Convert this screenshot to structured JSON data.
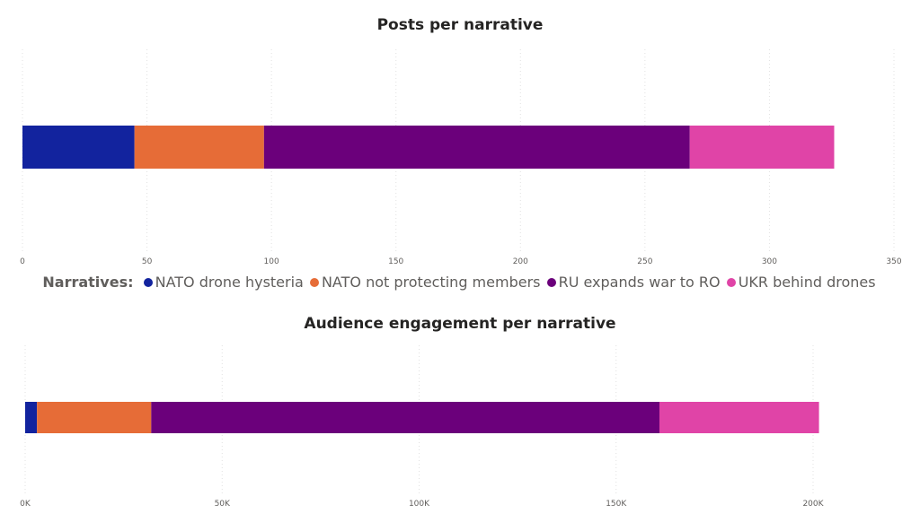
{
  "legend": {
    "title": "Narratives:",
    "items": [
      {
        "label": "NATO drone hysteria",
        "color": "#12239E"
      },
      {
        "label": "NATO not protecting members",
        "color": "#E66C37"
      },
      {
        "label": "RU expands war to RO",
        "color": "#6B007B"
      },
      {
        "label": "UKR behind drones",
        "color": "#E044A7"
      }
    ]
  },
  "chart_data": [
    {
      "type": "bar",
      "orientation": "horizontal",
      "stacked": true,
      "title": "Posts per narrative",
      "series": [
        {
          "name": "NATO drone hysteria",
          "values": [
            45
          ]
        },
        {
          "name": "NATO not protecting members",
          "values": [
            52
          ]
        },
        {
          "name": "RU expands war to RO",
          "values": [
            171
          ]
        },
        {
          "name": "UKR behind drones",
          "values": [
            58
          ]
        }
      ],
      "xlim": [
        0,
        350
      ],
      "x_ticks": [
        "0",
        "50",
        "100",
        "150",
        "200",
        "250",
        "300",
        "350"
      ],
      "x_tick_values": [
        0,
        50,
        100,
        150,
        200,
        250,
        300,
        350
      ],
      "grid": true,
      "legend_position": "bottom"
    },
    {
      "type": "bar",
      "orientation": "horizontal",
      "stacked": true,
      "title": "Audience engagement per narrative",
      "series": [
        {
          "name": "NATO drone hysteria",
          "values": [
            3000
          ]
        },
        {
          "name": "NATO not protecting members",
          "values": [
            29000
          ]
        },
        {
          "name": "RU expands war to RO",
          "values": [
            129000
          ]
        },
        {
          "name": "UKR behind drones",
          "values": [
            40500
          ]
        }
      ],
      "xlim": [
        0,
        200000
      ],
      "x_ticks": [
        "0K",
        "50K",
        "100K",
        "150K",
        "200K"
      ],
      "x_tick_values": [
        0,
        50000,
        100000,
        150000,
        200000
      ],
      "grid": true
    }
  ]
}
